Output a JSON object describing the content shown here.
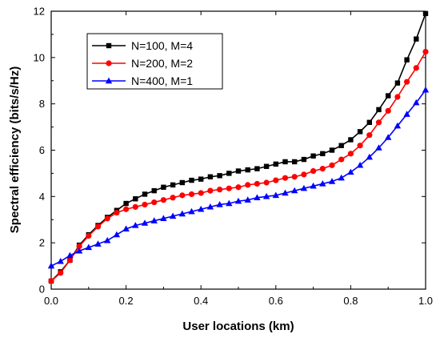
{
  "chart_data": {
    "type": "line",
    "xlabel": "User locations (km)",
    "ylabel": "Spectral efficiency (bits/s/Hz)",
    "xlim": [
      0.0,
      1.0
    ],
    "ylim": [
      0,
      12
    ],
    "x_ticks": [
      "0.0",
      "0.2",
      "0.4",
      "0.6",
      "0.8",
      "1.0"
    ],
    "y_ticks": [
      "0",
      "2",
      "4",
      "6",
      "8",
      "10",
      "12"
    ],
    "legend_position": "top-left",
    "grid": false,
    "x": [
      0.0,
      0.025,
      0.05,
      0.075,
      0.1,
      0.125,
      0.15,
      0.175,
      0.2,
      0.225,
      0.25,
      0.275,
      0.3,
      0.325,
      0.35,
      0.375,
      0.4,
      0.425,
      0.45,
      0.475,
      0.5,
      0.525,
      0.55,
      0.575,
      0.6,
      0.625,
      0.65,
      0.675,
      0.7,
      0.725,
      0.75,
      0.775,
      0.8,
      0.825,
      0.85,
      0.875,
      0.9,
      0.925,
      0.95,
      0.975,
      1.0
    ],
    "series": [
      {
        "name": "N=100, M=4",
        "color": "#000000",
        "marker": "square",
        "values": [
          0.35,
          0.75,
          1.25,
          1.9,
          2.35,
          2.75,
          3.1,
          3.4,
          3.7,
          3.9,
          4.1,
          4.25,
          4.4,
          4.5,
          4.6,
          4.7,
          4.75,
          4.85,
          4.9,
          5.0,
          5.1,
          5.15,
          5.2,
          5.3,
          5.4,
          5.5,
          5.5,
          5.6,
          5.75,
          5.85,
          6.0,
          6.2,
          6.45,
          6.8,
          7.2,
          7.75,
          8.35,
          8.9,
          9.9,
          10.8,
          11.9
        ]
      },
      {
        "name": "N=200, M=2",
        "color": "#ff0000",
        "marker": "circle",
        "values": [
          0.35,
          0.7,
          1.25,
          1.85,
          2.3,
          2.7,
          3.05,
          3.3,
          3.45,
          3.55,
          3.65,
          3.75,
          3.85,
          3.95,
          4.05,
          4.1,
          4.15,
          4.25,
          4.3,
          4.35,
          4.4,
          4.5,
          4.55,
          4.6,
          4.7,
          4.8,
          4.85,
          4.95,
          5.1,
          5.2,
          5.35,
          5.6,
          5.85,
          6.2,
          6.65,
          7.2,
          7.7,
          8.3,
          8.95,
          9.55,
          10.25
        ]
      },
      {
        "name": "N=400, M=1",
        "color": "#0000ff",
        "marker": "triangle",
        "values": [
          1.0,
          1.2,
          1.45,
          1.65,
          1.8,
          1.95,
          2.1,
          2.35,
          2.6,
          2.75,
          2.85,
          2.95,
          3.05,
          3.15,
          3.25,
          3.35,
          3.45,
          3.55,
          3.65,
          3.7,
          3.8,
          3.85,
          3.95,
          4.0,
          4.05,
          4.15,
          4.25,
          4.35,
          4.45,
          4.55,
          4.65,
          4.8,
          5.05,
          5.35,
          5.7,
          6.1,
          6.55,
          7.05,
          7.55,
          8.05,
          8.6
        ]
      }
    ]
  }
}
